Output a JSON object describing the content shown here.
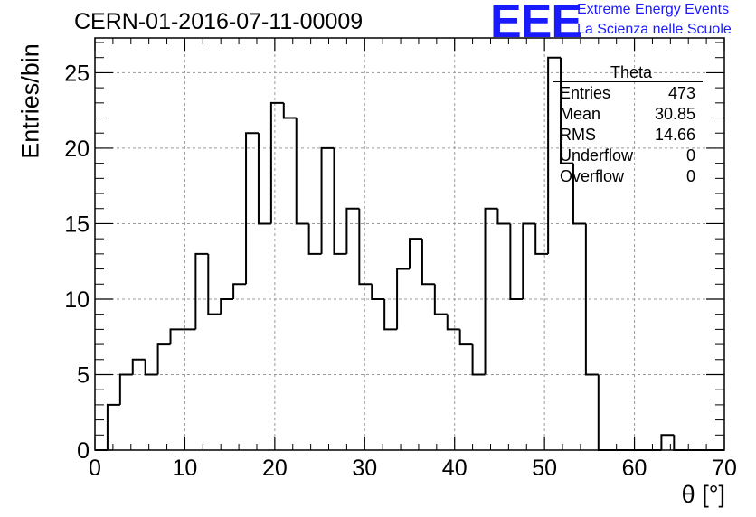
{
  "header": {
    "title": "CERN-01-2016-07-11-00009",
    "logo_text": "EEE",
    "logo_line1": "Extreme Energy Events",
    "logo_line2": "La Scienza nelle Scuole",
    "logo_color": "#1a1aff"
  },
  "chart_data": {
    "type": "bar",
    "histogram": true,
    "xlabel": "θ [°]",
    "ylabel": "Entries/bin",
    "xlim": [
      0,
      70
    ],
    "ylim": [
      0,
      27.3
    ],
    "grid": true,
    "grid_style": "dashed",
    "xticks": [
      "0",
      "10",
      "20",
      "30",
      "40",
      "50",
      "60",
      "70"
    ],
    "yticks": [
      "0",
      "5",
      "10",
      "15",
      "20",
      "25"
    ],
    "bin_width": 1.4,
    "bin_start": 0,
    "values": [
      0,
      3,
      5,
      6,
      5,
      7,
      8,
      8,
      13,
      9,
      10,
      11,
      21,
      15,
      23,
      22,
      15,
      13,
      20,
      13,
      16,
      11,
      10,
      8,
      12,
      14,
      11,
      9,
      8,
      7,
      5,
      16,
      15,
      10,
      15,
      13,
      26,
      19,
      15,
      5,
      0,
      0,
      0,
      0,
      0,
      1,
      0,
      0,
      0,
      0
    ],
    "line_color": "#000000"
  },
  "stats_box": {
    "title": "Theta",
    "rows": [
      {
        "label": "Entries",
        "value": "473"
      },
      {
        "label": "Mean",
        "value": "30.85"
      },
      {
        "label": "RMS",
        "value": "14.66"
      },
      {
        "label": "Underflow",
        "value": "0"
      },
      {
        "label": "Overflow",
        "value": "0"
      }
    ]
  }
}
